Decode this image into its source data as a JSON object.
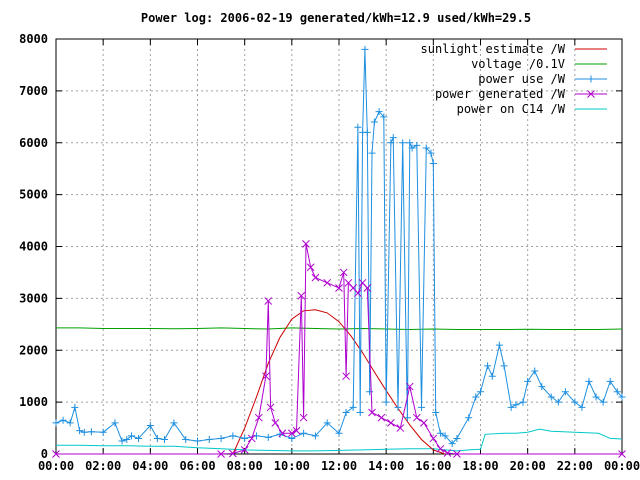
{
  "chart_data": {
    "type": "line",
    "title": "Power log: 2006-02-19 generated/kWh=12.9 used/kWh=29.5",
    "xlabel": "",
    "ylabel": "",
    "xlim": [
      0,
      24
    ],
    "ylim": [
      0,
      8000
    ],
    "x_ticks": [
      0,
      2,
      4,
      6,
      8,
      10,
      12,
      14,
      16,
      18,
      20,
      22,
      24
    ],
    "x_tick_labels": [
      "00:00",
      "02:00",
      "04:00",
      "06:00",
      "08:00",
      "10:00",
      "12:00",
      "14:00",
      "16:00",
      "18:00",
      "20:00",
      "22:00",
      "00:00"
    ],
    "y_ticks": [
      0,
      1000,
      2000,
      3000,
      4000,
      5000,
      6000,
      7000,
      8000
    ],
    "y_tick_labels": [
      "0",
      "1000",
      "2000",
      "3000",
      "4000",
      "5000",
      "6000",
      "7000",
      "8000"
    ],
    "grid": true,
    "legend_position": "top-right",
    "series": [
      {
        "name": "sunlight estimate /W",
        "color": "#cc0000",
        "marker": "none",
        "x": [
          7.5,
          8.0,
          8.5,
          9.0,
          9.5,
          10.0,
          10.5,
          11.0,
          11.5,
          12.0,
          12.5,
          13.0,
          13.5,
          14.0,
          14.5,
          15.0,
          15.5,
          16.0,
          16.5
        ],
        "y": [
          0,
          500,
          1100,
          1750,
          2250,
          2600,
          2760,
          2780,
          2720,
          2550,
          2280,
          1950,
          1580,
          1220,
          880,
          560,
          280,
          80,
          0
        ]
      },
      {
        "name": "voltage /0.1V",
        "color": "#00a000",
        "marker": "none",
        "x": [
          0,
          1,
          2,
          3,
          4,
          5,
          6,
          7,
          8,
          9,
          10,
          11,
          12,
          13,
          14,
          15,
          16,
          17,
          18,
          19,
          20,
          21,
          22,
          23,
          24
        ],
        "y": [
          2430,
          2430,
          2420,
          2420,
          2420,
          2415,
          2420,
          2430,
          2420,
          2410,
          2430,
          2420,
          2410,
          2420,
          2410,
          2400,
          2410,
          2400,
          2400,
          2400,
          2405,
          2400,
          2400,
          2400,
          2410
        ]
      },
      {
        "name": "power use /W",
        "color": "#1e8fe0",
        "marker": "+",
        "x": [
          0,
          0.3,
          0.6,
          0.8,
          1.0,
          1.2,
          1.5,
          2.0,
          2.5,
          2.8,
          3.0,
          3.2,
          3.5,
          4.0,
          4.3,
          4.6,
          5.0,
          5.5,
          6.0,
          6.5,
          7.0,
          7.5,
          8.0,
          8.5,
          9.0,
          9.5,
          10.0,
          10.5,
          11.0,
          11.5,
          12.0,
          12.3,
          12.6,
          12.8,
          12.9,
          13.0,
          13.1,
          13.2,
          13.3,
          13.4,
          13.5,
          13.7,
          13.9,
          14.0,
          14.2,
          14.3,
          14.5,
          14.7,
          14.9,
          15.0,
          15.1,
          15.3,
          15.5,
          15.7,
          15.9,
          16.0,
          16.1,
          16.3,
          16.5,
          16.8,
          17.0,
          17.5,
          17.8,
          18.0,
          18.3,
          18.5,
          18.8,
          19.0,
          19.3,
          19.5,
          19.8,
          20.0,
          20.3,
          20.6,
          21.0,
          21.3,
          21.6,
          22.0,
          22.3,
          22.6,
          22.9,
          23.2,
          23.5,
          23.8,
          24.0
        ],
        "y": [
          600,
          650,
          600,
          900,
          450,
          420,
          430,
          420,
          600,
          250,
          280,
          350,
          300,
          550,
          300,
          280,
          600,
          280,
          250,
          280,
          300,
          350,
          300,
          350,
          320,
          380,
          300,
          400,
          350,
          600,
          400,
          800,
          900,
          6300,
          800,
          6200,
          7800,
          6200,
          1200,
          5800,
          6400,
          6600,
          6500,
          1000,
          6000,
          6100,
          900,
          6000,
          700,
          6000,
          5900,
          5950,
          900,
          5900,
          5800,
          5600,
          800,
          400,
          350,
          200,
          300,
          700,
          1100,
          1200,
          1700,
          1500,
          2100,
          1700,
          900,
          950,
          1000,
          1400,
          1600,
          1300,
          1100,
          1000,
          1200,
          1000,
          900,
          1400,
          1100,
          1000,
          1400,
          1200,
          1100
        ]
      },
      {
        "name": "power generated /W",
        "color": "#b000d0",
        "marker": "x",
        "x": [
          0,
          7.0,
          7.5,
          8.0,
          8.3,
          8.6,
          8.9,
          9.0,
          9.1,
          9.3,
          9.6,
          10.0,
          10.2,
          10.4,
          10.5,
          10.6,
          10.8,
          11.0,
          11.5,
          12.0,
          12.2,
          12.3,
          12.4,
          12.6,
          12.8,
          13.0,
          13.2,
          13.4,
          13.8,
          14.2,
          14.6,
          15.0,
          15.3,
          15.6,
          16.0,
          16.3,
          16.6,
          17.0,
          24.0
        ],
        "y": [
          0,
          0,
          10,
          80,
          300,
          700,
          1500,
          2950,
          900,
          600,
          400,
          400,
          450,
          3050,
          700,
          4050,
          3600,
          3400,
          3300,
          3200,
          3500,
          1500,
          3300,
          3200,
          3100,
          3300,
          3200,
          800,
          700,
          600,
          500,
          1300,
          700,
          600,
          300,
          100,
          20,
          0,
          0
        ]
      },
      {
        "name": "power on C14 /W",
        "color": "#00c8c8",
        "marker": "none",
        "x": [
          0,
          1,
          2,
          3,
          4,
          5,
          6,
          7,
          8,
          9,
          10,
          11,
          12,
          13,
          14,
          15,
          16,
          16.5,
          17,
          17.5,
          18,
          18.2,
          19,
          19.5,
          20,
          20.5,
          21,
          22,
          23,
          23.5,
          24
        ],
        "y": [
          170,
          170,
          160,
          160,
          150,
          150,
          120,
          100,
          80,
          70,
          60,
          60,
          70,
          80,
          90,
          100,
          100,
          80,
          60,
          80,
          90,
          380,
          400,
          400,
          420,
          480,
          440,
          420,
          400,
          300,
          290
        ]
      }
    ]
  }
}
